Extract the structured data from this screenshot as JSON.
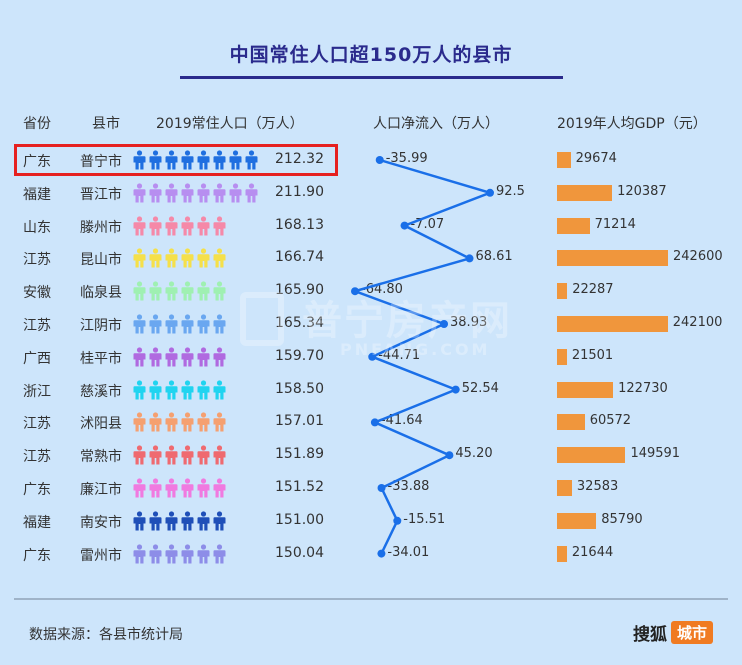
{
  "title": "中国常住人口超150万人的县市",
  "headers": {
    "province": "省份",
    "city": "县市",
    "population": "2019常住人口（万人）",
    "netflow": "人口净流入（万人）",
    "gdp": "2019年人均GDP（元）"
  },
  "chart_data": {
    "type": "table",
    "title": "中国常住人口超150万人的县市",
    "columns": [
      "省份",
      "县市",
      "2019常住人口（万人）",
      "人口净流入（万人）",
      "2019年人均GDP（元）"
    ],
    "highlighted_row": 0,
    "rows": [
      {
        "province": "广东",
        "city": "普宁市",
        "population": "212.32",
        "people_icons": 8,
        "icon_color": "#1f6fe0",
        "netflow": -35.99,
        "netflow_label": "-35.99",
        "gdp": 29674,
        "gdp_label": "29674"
      },
      {
        "province": "福建",
        "city": "晋江市",
        "population": "211.90",
        "people_icons": 8,
        "icon_color": "#b78ef0",
        "netflow": 92.5,
        "netflow_label": "92.5",
        "gdp": 120387,
        "gdp_label": "120387"
      },
      {
        "province": "山东",
        "city": "滕州市",
        "population": "168.13",
        "people_icons": 6,
        "icon_color": "#f589a8",
        "netflow": -7.07,
        "netflow_label": "-7.07",
        "gdp": 71214,
        "gdp_label": "71214"
      },
      {
        "province": "江苏",
        "city": "昆山市",
        "population": "166.74",
        "people_icons": 6,
        "icon_color": "#f5e04a",
        "netflow": 68.61,
        "netflow_label": "68.61",
        "gdp": 242600,
        "gdp_label": "242600"
      },
      {
        "province": "安徽",
        "city": "临泉县",
        "population": "165.90",
        "people_icons": 6,
        "icon_color": "#9ff0b2",
        "netflow": -64.8,
        "netflow_label": "-64.80",
        "gdp": 22287,
        "gdp_label": "22287"
      },
      {
        "province": "江苏",
        "city": "江阴市",
        "population": "165.34",
        "people_icons": 6,
        "icon_color": "#6aa7f0",
        "netflow": 38.93,
        "netflow_label": "38.93",
        "gdp": 242100,
        "gdp_label": "242100"
      },
      {
        "province": "广西",
        "city": "桂平市",
        "population": "159.70",
        "people_icons": 6,
        "icon_color": "#b06ae0",
        "netflow": -44.71,
        "netflow_label": "-44.71",
        "gdp": 21501,
        "gdp_label": "21501"
      },
      {
        "province": "浙江",
        "city": "慈溪市",
        "population": "158.50",
        "people_icons": 6,
        "icon_color": "#20d4f0",
        "netflow": 52.54,
        "netflow_label": "52.54",
        "gdp": 122730,
        "gdp_label": "122730"
      },
      {
        "province": "江苏",
        "city": "沭阳县",
        "population": "157.01",
        "people_icons": 6,
        "icon_color": "#f5a070",
        "netflow": -41.64,
        "netflow_label": "-41.64",
        "gdp": 60572,
        "gdp_label": "60572"
      },
      {
        "province": "江苏",
        "city": "常熟市",
        "population": "151.89",
        "people_icons": 6,
        "icon_color": "#ef6a70",
        "netflow": 45.2,
        "netflow_label": "45.20",
        "gdp": 149591,
        "gdp_label": "149591"
      },
      {
        "province": "广东",
        "city": "廉江市",
        "population": "151.52",
        "people_icons": 6,
        "icon_color": "#f07ae0",
        "netflow": -33.88,
        "netflow_label": "-33.88",
        "gdp": 32583,
        "gdp_label": "32583"
      },
      {
        "province": "福建",
        "city": "南安市",
        "population": "151.00",
        "people_icons": 6,
        "icon_color": "#1f4fb8",
        "netflow": -15.51,
        "netflow_label": "-15.51",
        "gdp": 85790,
        "gdp_label": "85790"
      },
      {
        "province": "广东",
        "city": "雷州市",
        "population": "150.04",
        "people_icons": 6,
        "icon_color": "#8d8de8",
        "netflow": -34.01,
        "netflow_label": "-34.01",
        "gdp": 21644,
        "gdp_label": "21644"
      }
    ],
    "netflow_line_color": "#1a6fe8",
    "gdp_bar_color": "#f0963c"
  },
  "watermark": {
    "main": "普宁房产网",
    "sub": "PNFANG.COM"
  },
  "footer": {
    "source": "数据来源：各县市统计局",
    "brand_a": "搜狐",
    "brand_b": "城市"
  }
}
